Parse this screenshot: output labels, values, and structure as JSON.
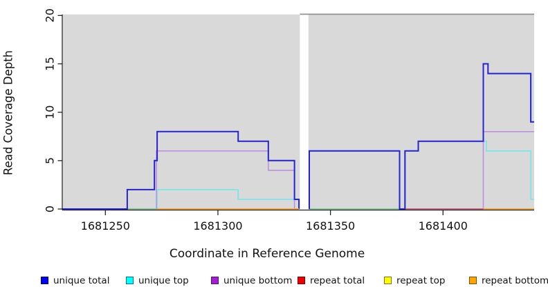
{
  "chart_data": {
    "type": "line",
    "title": "",
    "xlabel": "Coordinate in Reference Genome",
    "ylabel": "Read Coverage Depth",
    "xlim": [
      1681231,
      1681440.5
    ],
    "ylim": [
      0,
      20
    ],
    "x_ticks": [
      "1681250",
      "1681300",
      "1681350",
      "1681400"
    ],
    "x_tick_values": [
      1681250,
      1681300,
      1681350,
      1681400
    ],
    "y_ticks": [
      "0",
      "5",
      "10",
      "15",
      "20"
    ],
    "y_tick_values": [
      0,
      5,
      10,
      15,
      20
    ],
    "plot_background": "#d9d9d9",
    "gap_region": {
      "x_start": 1681336.4,
      "x_end": 1681340.2,
      "note": "white vertical band with no data"
    },
    "top_border_segment": {
      "x_start": 1681336.4,
      "x_end": 1681440.5,
      "color": "#8a8a8a"
    },
    "grid": "off",
    "legend_position": "bottom",
    "legend": [
      {
        "label": "unique total",
        "color": "#0000ee",
        "border": "#000077"
      },
      {
        "label": "unique top",
        "color": "#00ffff",
        "border": "#007788"
      },
      {
        "label": "unique bottom",
        "color": "#a020d0",
        "border": "#551177"
      },
      {
        "label": "repeat total",
        "color": "#ee0000",
        "border": "#770000"
      },
      {
        "label": "repeat top",
        "color": "#ffff00",
        "border": "#787800"
      },
      {
        "label": "repeat bottom",
        "color": "#ffa500",
        "border": "#785200"
      }
    ],
    "series": [
      {
        "name": "unique top",
        "color": "#6fe8ef",
        "width": 1.6,
        "paths": [
          [
            [
              1681231,
              0
            ],
            [
              1681273,
              0
            ],
            [
              1681273,
              2
            ],
            [
              1681309,
              2
            ],
            [
              1681309,
              1
            ],
            [
              1681336,
              1
            ],
            [
              1681336,
              0
            ]
          ],
          [
            [
              1681340.6,
              0
            ],
            [
              1681383.1,
              0
            ],
            [
              1681383.1,
              6
            ],
            [
              1681389,
              6
            ],
            [
              1681389,
              7
            ],
            [
              1681419.3,
              7
            ],
            [
              1681419.3,
              6
            ],
            [
              1681439,
              6
            ],
            [
              1681439,
              1
            ],
            [
              1681440.5,
              1
            ]
          ]
        ]
      },
      {
        "name": "unique bottom",
        "color": "#bd8fe0",
        "width": 1.6,
        "paths": [
          [
            [
              1681231,
              0
            ],
            [
              1681272.7,
              0
            ],
            [
              1681272.7,
              6
            ],
            [
              1681322.4,
              6
            ],
            [
              1681322.4,
              4
            ],
            [
              1681334,
              4
            ],
            [
              1681334,
              0
            ],
            [
              1681336,
              0
            ]
          ],
          [
            [
              1681340.6,
              0
            ],
            [
              1681340.6,
              6
            ],
            [
              1681380.7,
              6
            ],
            [
              1681380.7,
              0
            ],
            [
              1681417.9,
              0
            ],
            [
              1681417.9,
              8
            ],
            [
              1681440.5,
              8
            ]
          ]
        ]
      },
      {
        "name": "unlabeled green baseline",
        "color": "#7cc57e",
        "width": 1.6,
        "paths": [
          [
            [
              1681259.7,
              0
            ],
            [
              1681273,
              0
            ]
          ],
          [
            [
              1681340.6,
              0
            ],
            [
              1681381.5,
              0
            ]
          ]
        ]
      },
      {
        "name": "repeat total",
        "color": "#c64a62",
        "width": 1.6,
        "paths": [
          [
            [
              1681383.1,
              0
            ],
            [
              1681417.9,
              0
            ]
          ]
        ]
      },
      {
        "name": "unique total",
        "color": "#2323d0",
        "width": 2,
        "paths": [
          [
            [
              1681231,
              0
            ],
            [
              1681259.7,
              0
            ],
            [
              1681259.7,
              2
            ],
            [
              1681271.8,
              2
            ],
            [
              1681271.8,
              5
            ],
            [
              1681273,
              5
            ],
            [
              1681273,
              8
            ],
            [
              1681309,
              8
            ],
            [
              1681309,
              7
            ],
            [
              1681322.4,
              7
            ],
            [
              1681322.4,
              5
            ],
            [
              1681334,
              5
            ],
            [
              1681334,
              1
            ],
            [
              1681336,
              1
            ],
            [
              1681336,
              0
            ]
          ],
          [
            [
              1681340.6,
              0
            ],
            [
              1681340.6,
              6
            ],
            [
              1681380.7,
              6
            ],
            [
              1681380.7,
              0
            ],
            [
              1681383.1,
              0
            ],
            [
              1681383.1,
              6
            ],
            [
              1681389,
              6
            ],
            [
              1681389,
              7
            ],
            [
              1681417.9,
              7
            ],
            [
              1681417.9,
              15
            ],
            [
              1681420,
              15
            ],
            [
              1681420,
              14
            ],
            [
              1681439,
              14
            ],
            [
              1681439,
              9
            ],
            [
              1681440.5,
              9
            ]
          ]
        ]
      },
      {
        "name": "repeat bottom",
        "color": "#ff9d26",
        "width": 1.8,
        "paths": [
          [
            [
              1681273,
              0
            ],
            [
              1681336,
              0
            ]
          ],
          [
            [
              1681417.9,
              0
            ],
            [
              1681440.5,
              0
            ]
          ]
        ]
      }
    ]
  }
}
